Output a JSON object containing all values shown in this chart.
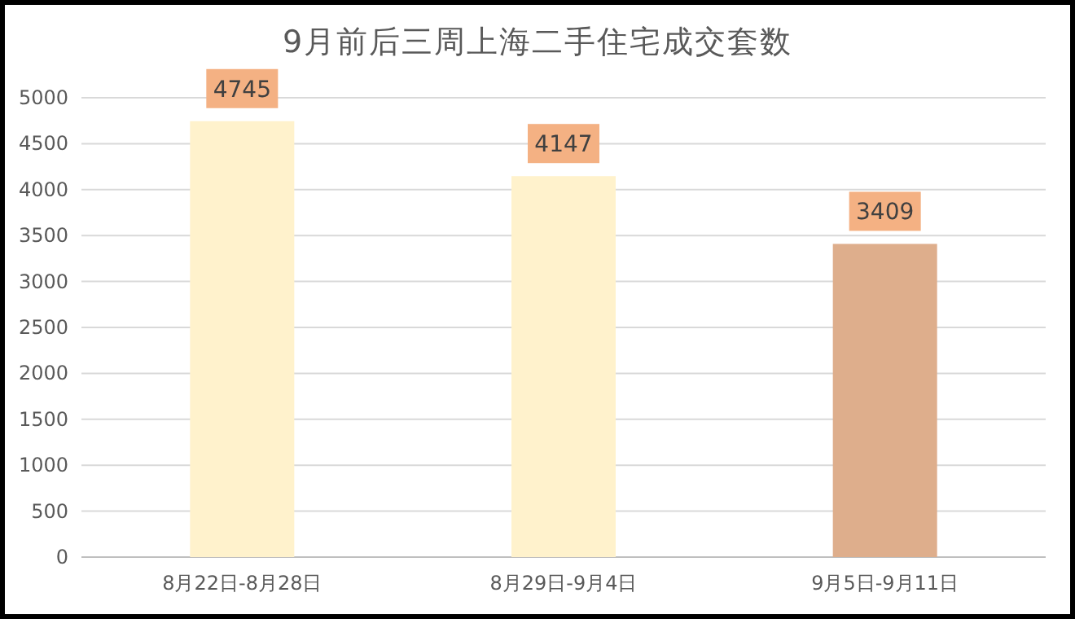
{
  "chart_data": {
    "type": "bar",
    "title": "9月前后三周上海二手住宅成交套数",
    "categories": [
      "8月22日-8月28日",
      "8月29日-9月4日",
      "9月5日-9月11日"
    ],
    "values": [
      4745,
      4147,
      3409
    ],
    "colors": [
      "#fff2cc",
      "#fff2cc",
      "#deae8c"
    ],
    "ylim": [
      0,
      5000
    ],
    "yticks": [
      0,
      500,
      1000,
      1500,
      2000,
      2500,
      3000,
      3500,
      4000,
      4500,
      5000
    ],
    "grid": "y",
    "data_labels": true
  }
}
